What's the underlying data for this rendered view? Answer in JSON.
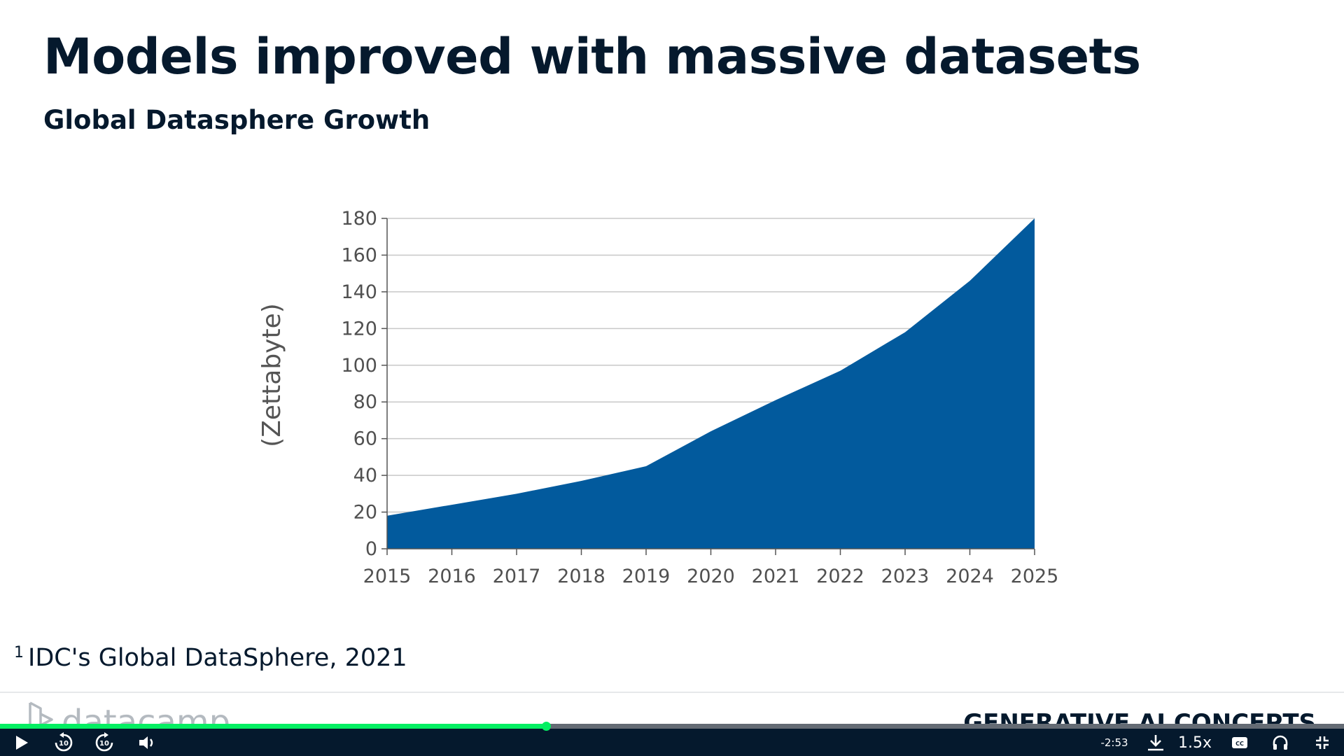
{
  "slide": {
    "title": "Models improved with massive datasets",
    "subtitle": "Global Datasphere Growth",
    "footnote_marker": "1",
    "footnote_text": "IDC's Global DataSphere, 2021",
    "brand": "datacamp",
    "course_tag": "GENERATIVE AI CONCEPTS"
  },
  "chart_data": {
    "type": "area",
    "title": "",
    "xlabel": "",
    "ylabel": "(Zettabyte)",
    "x": [
      "2015",
      "2016",
      "2017",
      "2018",
      "2019",
      "2020",
      "2021",
      "2022",
      "2023",
      "2024",
      "2025"
    ],
    "values": [
      18,
      24,
      30,
      37,
      45,
      64,
      81,
      97,
      118,
      146,
      180
    ],
    "y_ticks": [
      0,
      20,
      40,
      60,
      80,
      100,
      120,
      140,
      160,
      180
    ],
    "ylim": [
      0,
      180
    ],
    "grid": true,
    "colors": {
      "area": "#025a9d",
      "grid": "#c8c8c8",
      "axis": "#555555",
      "text": "#505050"
    }
  },
  "player": {
    "time_remaining": "-2:53",
    "speed": "1.5x",
    "progress": 0.406,
    "icons": {
      "play": "play-icon",
      "rewind": "rewind-10-icon",
      "forward": "forward-10-icon",
      "volume": "volume-icon",
      "download": "download-icon",
      "captions": "captions-icon",
      "audio": "headphones-icon",
      "fullscreen": "exit-fullscreen-icon"
    },
    "colors": {
      "bar": "#05192d",
      "progress": "#03ef62",
      "track": "#646b74"
    }
  }
}
